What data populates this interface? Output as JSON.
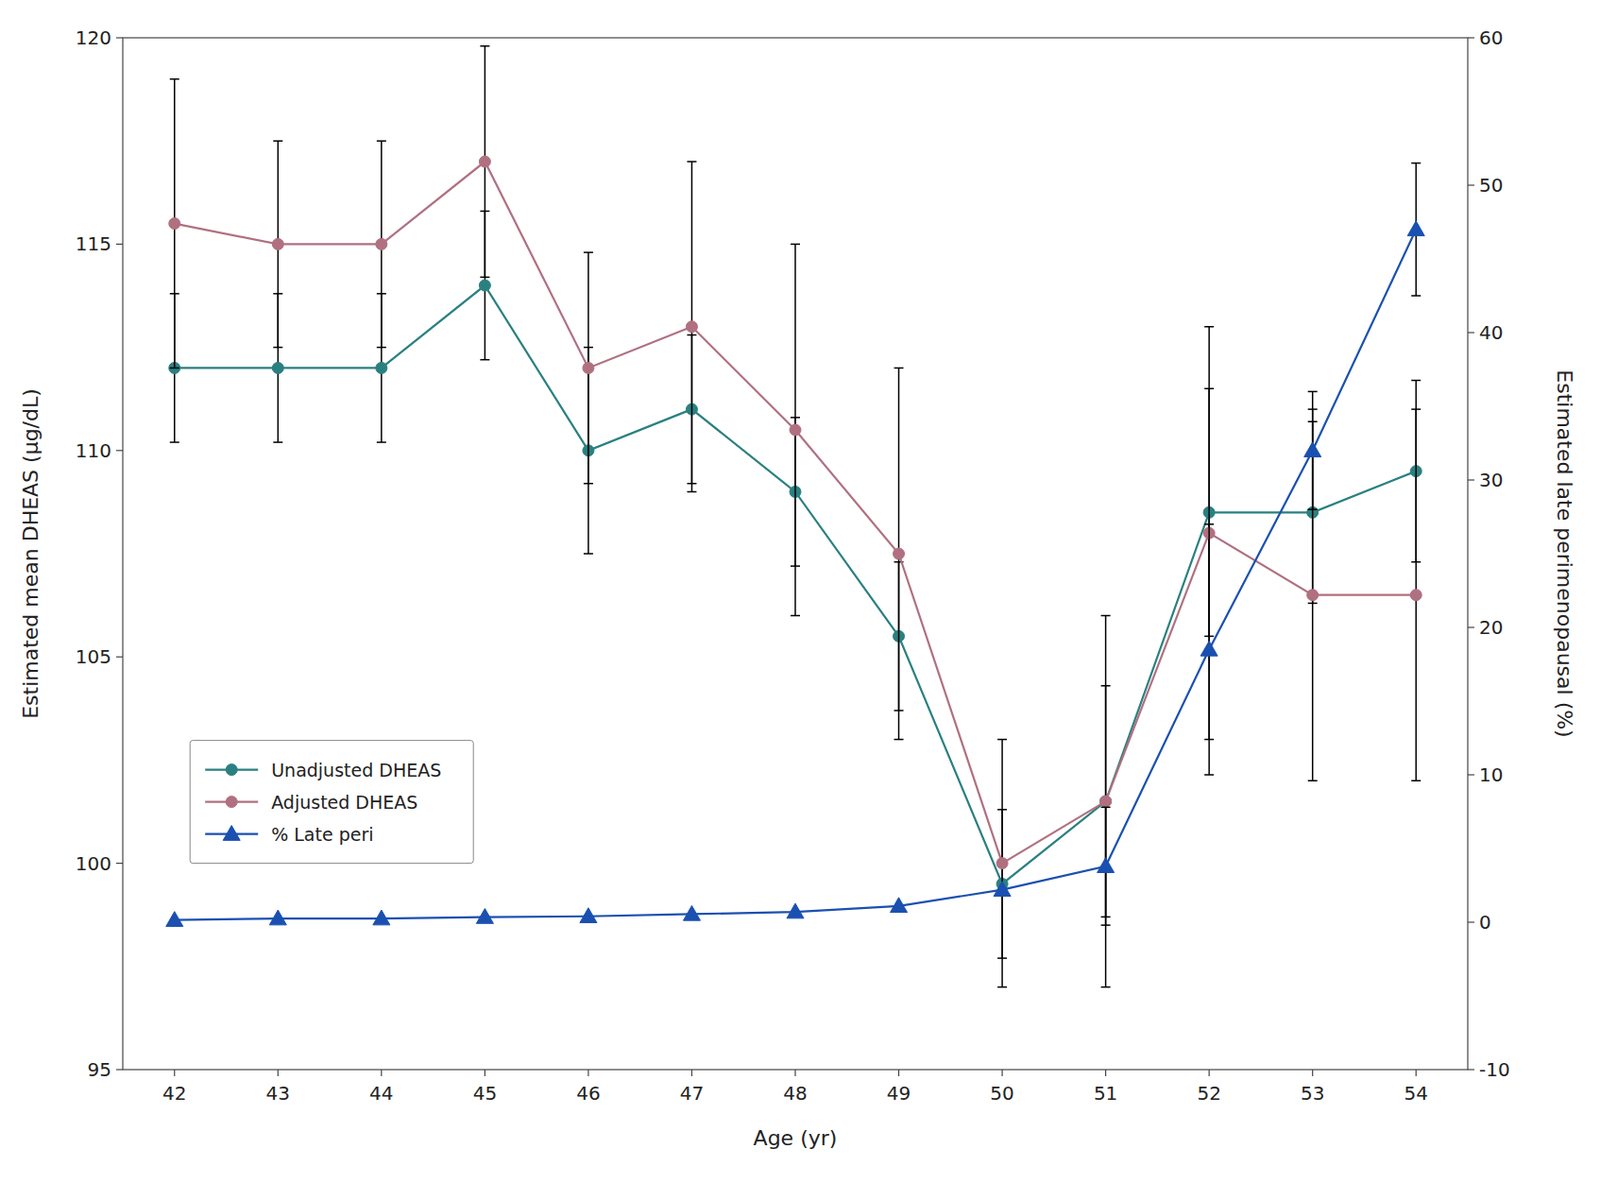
{
  "chart_data": {
    "type": "line",
    "xlabel": "Age (yr)",
    "ylabel": "Estimated mean DHEAS (μg/dL)",
    "y2label": "Estimated late perimenopausal (%)",
    "x": [
      42,
      43,
      44,
      45,
      46,
      47,
      48,
      49,
      50,
      51,
      52,
      53,
      54
    ],
    "xlim": [
      41.5,
      54.5
    ],
    "xticks": [
      42,
      43,
      44,
      45,
      46,
      47,
      48,
      49,
      50,
      51,
      52,
      53,
      54
    ],
    "ylim": [
      95,
      120
    ],
    "yticks": [
      95,
      100,
      105,
      110,
      115,
      120
    ],
    "y2lim": [
      -10,
      60
    ],
    "y2ticks": [
      -10,
      0,
      10,
      20,
      30,
      40,
      50,
      60
    ],
    "grid": false,
    "legend": "lower left",
    "series": [
      {
        "name": "Unadjusted DHEAS",
        "color": "#2a8080",
        "marker": "circle",
        "values": [
          112.0,
          112.0,
          112.0,
          114.0,
          110.0,
          111.0,
          109.0,
          105.5,
          99.5,
          101.5,
          108.5,
          108.5,
          109.5
        ],
        "error_lower": [
          1.8,
          1.8,
          1.8,
          1.8,
          2.5,
          1.8,
          1.8,
          1.8,
          1.8,
          2.8,
          3.0,
          2.2,
          2.2
        ],
        "error_upper": [
          1.8,
          1.8,
          1.8,
          1.8,
          2.5,
          1.8,
          1.8,
          1.8,
          1.8,
          2.8,
          3.0,
          2.2,
          2.2
        ]
      },
      {
        "name": "Adjusted DHEAS",
        "color": "#b07080",
        "marker": "circle",
        "values": [
          115.5,
          115.0,
          115.0,
          117.0,
          112.0,
          113.0,
          110.5,
          107.5,
          100.0,
          101.5,
          108.0,
          106.5,
          106.5
        ],
        "error_lower": [
          3.5,
          2.5,
          2.5,
          2.8,
          2.8,
          4.0,
          4.5,
          4.5,
          3.0,
          4.5,
          5.0,
          4.5,
          4.5
        ],
        "error_upper": [
          3.5,
          2.5,
          2.5,
          2.8,
          2.8,
          4.0,
          4.5,
          4.5,
          3.0,
          4.5,
          5.0,
          4.5,
          4.5
        ]
      },
      {
        "name": "% Late peri",
        "color": "#1a50b0",
        "marker": "triangle",
        "axis": "y2",
        "values": [
          0.15,
          0.25,
          0.25,
          0.35,
          0.4,
          0.55,
          0.7,
          1.1,
          2.2,
          3.8,
          18.5,
          32.0,
          47.0
        ],
        "error_lower": [
          0.0,
          0.0,
          0.0,
          0.0,
          0.0,
          0.0,
          0.0,
          0.0,
          0.0,
          4.0,
          8.5,
          4.0,
          4.5
        ],
        "error_upper": [
          0.0,
          0.0,
          0.0,
          0.0,
          0.0,
          0.0,
          0.0,
          0.0,
          0.0,
          4.0,
          8.5,
          4.0,
          4.5
        ]
      }
    ]
  }
}
